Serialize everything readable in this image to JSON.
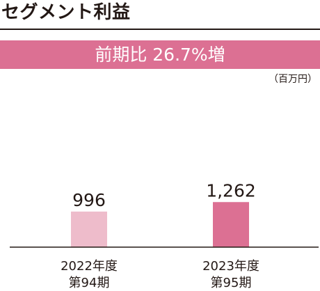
{
  "header": {
    "title": "セグメント利益"
  },
  "banner": {
    "text": "前期比 26.7%増",
    "color": "#dc7093"
  },
  "unit_label": "（百万円）",
  "chart_data": {
    "type": "bar",
    "title": "セグメント利益",
    "xlabel": "",
    "ylabel": "",
    "unit": "百万円",
    "categories": [
      [
        "2022年度",
        "第94期"
      ],
      [
        "2023年度",
        "第95期"
      ]
    ],
    "values": [
      996,
      1262
    ],
    "value_labels": [
      "996",
      "1,262"
    ],
    "bar_colors": [
      "#eebccb",
      "#dc7093"
    ],
    "ylim": [
      0,
      1500
    ],
    "grid": false,
    "legend": "none"
  }
}
